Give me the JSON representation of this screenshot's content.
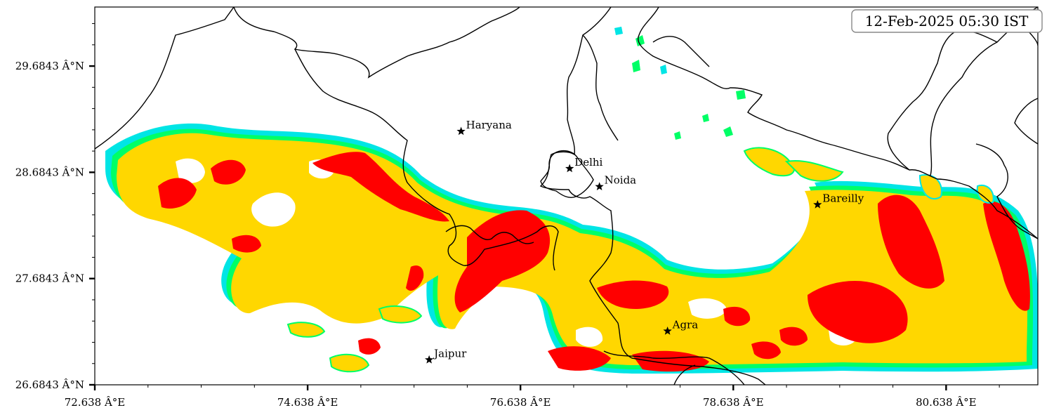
{
  "timestamp": "12-Feb-2025 05:30 IST",
  "colors": {
    "red": "#ff0000",
    "gold": "#ffd700",
    "lime": "#32cd32",
    "spring": "#00ff66",
    "cyan": "#00e5e5",
    "border": "#000000"
  },
  "axes": {
    "x_ticks": [
      "72.638 Â°E",
      "74.638 Â°E",
      "76.638 Â°E",
      "78.638 Â°E",
      "80.638 Â°E"
    ],
    "y_ticks": [
      "26.6843 Â°N",
      "27.6843 Â°N",
      "28.6843 Â°N",
      "29.6843 Â°N"
    ],
    "x_range": [
      72.638,
      81.5
    ],
    "y_range": [
      26.6843,
      30.24
    ]
  },
  "cities": [
    {
      "name": "Haryana",
      "lon": 76.08,
      "lat": 29.07
    },
    {
      "name": "Delhi",
      "lon": 77.1,
      "lat": 28.72
    },
    {
      "name": "Noida",
      "lon": 77.38,
      "lat": 28.55
    },
    {
      "name": "Bareilly",
      "lon": 79.43,
      "lat": 28.38
    },
    {
      "name": "Agra",
      "lon": 78.02,
      "lat": 27.19
    },
    {
      "name": "Jaipur",
      "lon": 75.78,
      "lat": 26.92
    }
  ]
}
